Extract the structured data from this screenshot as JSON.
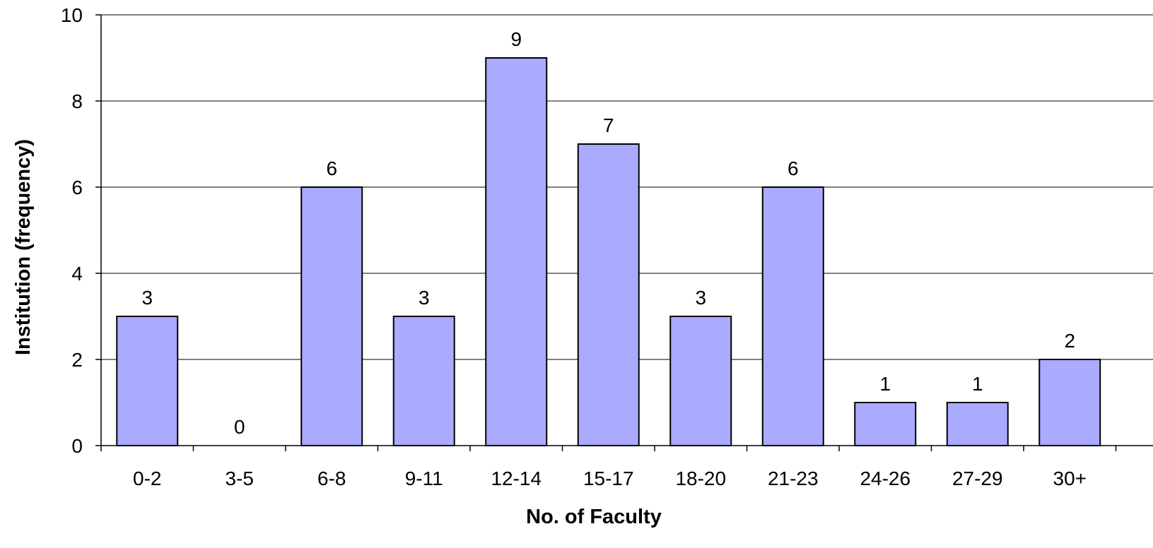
{
  "colors": {
    "bar_fill": "#aaaaff",
    "bar_stroke": "#000000",
    "grid": "#000000"
  },
  "chart_data": {
    "type": "bar",
    "categories": [
      "0-2",
      "3-5",
      "6-8",
      "9-11",
      "12-14",
      "15-17",
      "18-20",
      "21-23",
      "24-26",
      "27-29",
      "30+"
    ],
    "values": [
      3,
      0,
      6,
      3,
      9,
      7,
      3,
      6,
      1,
      1,
      2
    ],
    "title": "",
    "xlabel": "No. of Faculty",
    "ylabel": "Institution (frequency)",
    "ylim": [
      0,
      10
    ],
    "yticks": [
      0,
      2,
      4,
      6,
      8,
      10
    ],
    "grid": true,
    "legend": "none",
    "data_labels": true
  }
}
